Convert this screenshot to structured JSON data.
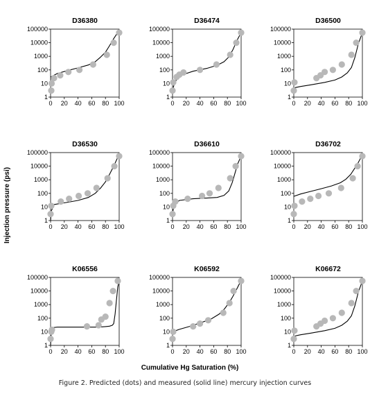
{
  "ylabel": "Injection pressure (psi)",
  "xlabel": "Cumulative Hg Saturation (%)",
  "caption": "Figure 2. Predicted (dots) and measured (solid line) mercury injection curves",
  "colors": {
    "dots": "#b8b8b8",
    "line": "#000000",
    "frame": "#000000"
  },
  "chart_data": [
    {
      "type": "scatter",
      "title": "D36380",
      "xlim": [
        0,
        100
      ],
      "ylim": [
        1,
        100000
      ],
      "yscale": "log",
      "x_ticks": [
        "0",
        "20",
        "40",
        "60",
        "80",
        "100"
      ],
      "y_ticks": [
        "1",
        "10",
        "100",
        "1000",
        "10000",
        "100000"
      ],
      "series": [
        {
          "kind": "dots",
          "x": [
            1,
            1.5,
            5,
            14,
            26,
            42,
            62,
            82,
            92,
            100
          ],
          "y": [
            3,
            10,
            25,
            40,
            70,
            100,
            250,
            1300,
            10000,
            55000
          ]
        },
        {
          "kind": "line",
          "x": [
            0,
            10,
            25,
            40,
            55,
            65,
            72,
            80,
            86,
            92,
            96,
            100
          ],
          "y": [
            30,
            55,
            90,
            140,
            230,
            400,
            800,
            2000,
            6000,
            20000,
            40000,
            55000
          ]
        }
      ]
    },
    {
      "type": "scatter",
      "title": "D36474",
      "xlim": [
        0,
        100
      ],
      "ylim": [
        1,
        100000
      ],
      "yscale": "log",
      "x_ticks": [
        "0",
        "20",
        "40",
        "60",
        "80",
        "100"
      ],
      "y_ticks": [
        "1",
        "10",
        "100",
        "1000",
        "10000",
        "100000"
      ],
      "series": [
        {
          "kind": "dots",
          "x": [
            0,
            1,
            6,
            10,
            16,
            40,
            64,
            84,
            93,
            100
          ],
          "y": [
            3,
            12,
            30,
            45,
            65,
            100,
            250,
            1300,
            10000,
            55000
          ]
        },
        {
          "kind": "line",
          "x": [
            0,
            3,
            8,
            15,
            30,
            50,
            65,
            75,
            82,
            88,
            94,
            100
          ],
          "y": [
            3,
            12,
            25,
            45,
            80,
            130,
            220,
            400,
            900,
            3000,
            15000,
            55000
          ]
        }
      ]
    },
    {
      "type": "scatter",
      "title": "D36500",
      "xlim": [
        0,
        100
      ],
      "ylim": [
        1,
        100000
      ],
      "yscale": "log",
      "x_ticks": [
        "0",
        "20",
        "40",
        "60",
        "80",
        "100"
      ],
      "y_ticks": [
        "1",
        "10",
        "100",
        "1000",
        "10000",
        "100000"
      ],
      "series": [
        {
          "kind": "dots",
          "x": [
            0,
            1,
            33,
            39,
            45,
            57,
            70,
            84,
            91,
            100
          ],
          "y": [
            3,
            12,
            25,
            40,
            70,
            100,
            250,
            1300,
            10000,
            55000
          ]
        },
        {
          "kind": "line",
          "x": [
            0,
            2,
            10,
            25,
            45,
            60,
            70,
            78,
            84,
            89,
            94,
            100
          ],
          "y": [
            4,
            5,
            6,
            8,
            12,
            18,
            30,
            60,
            150,
            800,
            8000,
            55000
          ]
        }
      ]
    },
    {
      "type": "scatter",
      "title": "D36530",
      "xlim": [
        0,
        100
      ],
      "ylim": [
        1,
        100000
      ],
      "yscale": "log",
      "x_ticks": [
        "0",
        "20",
        "40",
        "60",
        "80",
        "100"
      ],
      "y_ticks": [
        "1",
        "10",
        "100",
        "1000",
        "10000",
        "100000"
      ],
      "series": [
        {
          "kind": "dots",
          "x": [
            0,
            1,
            15,
            27,
            41,
            54,
            67,
            83,
            93,
            100
          ],
          "y": [
            3,
            12,
            25,
            40,
            65,
            100,
            250,
            1300,
            10000,
            55000
          ]
        },
        {
          "kind": "line",
          "x": [
            0,
            1,
            5,
            20,
            40,
            55,
            65,
            73,
            80,
            86,
            92,
            97,
            100
          ],
          "y": [
            1,
            5,
            15,
            20,
            30,
            50,
            100,
            250,
            700,
            2500,
            10000,
            35000,
            55000
          ]
        }
      ]
    },
    {
      "type": "scatter",
      "title": "D36610",
      "xlim": [
        0,
        100
      ],
      "ylim": [
        1,
        100000
      ],
      "yscale": "log",
      "x_ticks": [
        "0",
        "20",
        "40",
        "60",
        "80",
        "100"
      ],
      "y_ticks": [
        "1",
        "10",
        "100",
        "1000",
        "10000",
        "100000"
      ],
      "series": [
        {
          "kind": "dots",
          "x": [
            0,
            1,
            4,
            22,
            43,
            54,
            67,
            84,
            92,
            100
          ],
          "y": [
            3,
            12,
            25,
            40,
            65,
            100,
            250,
            1300,
            10000,
            55000
          ]
        },
        {
          "kind": "line",
          "x": [
            0,
            2,
            10,
            30,
            50,
            65,
            75,
            82,
            87,
            91,
            95,
            100
          ],
          "y": [
            3,
            15,
            30,
            40,
            45,
            50,
            70,
            150,
            600,
            3000,
            15000,
            55000
          ]
        }
      ]
    },
    {
      "type": "scatter",
      "title": "D36702",
      "xlim": [
        0,
        100
      ],
      "ylim": [
        1,
        100000
      ],
      "yscale": "log",
      "x_ticks": [
        "0",
        "20",
        "40",
        "60",
        "80",
        "100"
      ],
      "y_ticks": [
        "1",
        "10",
        "100",
        "1000",
        "10000",
        "100000"
      ],
      "series": [
        {
          "kind": "dots",
          "x": [
            0,
            1,
            12,
            24,
            36,
            51,
            69,
            86,
            93,
            100
          ],
          "y": [
            3,
            12,
            25,
            40,
            65,
            100,
            250,
            1300,
            10000,
            55000
          ]
        },
        {
          "kind": "line",
          "x": [
            0,
            10,
            25,
            40,
            55,
            68,
            76,
            83,
            88,
            93,
            97,
            100
          ],
          "y": [
            60,
            90,
            140,
            220,
            350,
            600,
            1100,
            2500,
            6000,
            15000,
            35000,
            55000
          ]
        }
      ]
    },
    {
      "type": "scatter",
      "title": "K06556",
      "xlim": [
        0,
        100
      ],
      "ylim": [
        1,
        100000
      ],
      "yscale": "log",
      "x_ticks": [
        "0",
        "20",
        "40",
        "60",
        "80",
        "100"
      ],
      "y_ticks": [
        "1",
        "10",
        "100",
        "1000",
        "10000",
        "100000"
      ],
      "series": [
        {
          "kind": "dots",
          "x": [
            0,
            1,
            2,
            53,
            70,
            74,
            80,
            86,
            91,
            98
          ],
          "y": [
            3,
            10,
            14,
            25,
            30,
            80,
            130,
            1300,
            10000,
            55000
          ]
        },
        {
          "kind": "line",
          "x": [
            0,
            1,
            2,
            10,
            30,
            50,
            70,
            80,
            86,
            90,
            92,
            94,
            96,
            98,
            100
          ],
          "y": [
            1,
            10,
            20,
            22,
            22,
            22,
            22,
            24,
            26,
            30,
            40,
            200,
            2000,
            20000,
            55000
          ]
        }
      ]
    },
    {
      "type": "scatter",
      "title": "K06592",
      "xlim": [
        0,
        100
      ],
      "ylim": [
        1,
        100000
      ],
      "yscale": "log",
      "x_ticks": [
        "0",
        "20",
        "40",
        "60",
        "80",
        "100"
      ],
      "y_ticks": [
        "1",
        "10",
        "100",
        "1000",
        "10000",
        "100000"
      ],
      "series": [
        {
          "kind": "dots",
          "x": [
            0,
            1,
            30,
            40,
            52,
            74,
            83,
            89,
            100
          ],
          "y": [
            3,
            10,
            25,
            40,
            70,
            250,
            1300,
            10000,
            55000
          ]
        },
        {
          "kind": "line",
          "x": [
            0,
            10,
            25,
            40,
            55,
            68,
            76,
            83,
            88,
            93,
            97,
            100
          ],
          "y": [
            10,
            15,
            25,
            45,
            80,
            200,
            500,
            1500,
            4000,
            12000,
            30000,
            55000
          ]
        }
      ]
    },
    {
      "type": "scatter",
      "title": "K06672",
      "xlim": [
        0,
        100
      ],
      "ylim": [
        1,
        100000
      ],
      "yscale": "log",
      "x_ticks": [
        "0",
        "20",
        "40",
        "60",
        "80",
        "100"
      ],
      "y_ticks": [
        "1",
        "10",
        "100",
        "1000",
        "10000",
        "100000"
      ],
      "series": [
        {
          "kind": "dots",
          "x": [
            0,
            1,
            33,
            39,
            45,
            57,
            70,
            84,
            91,
            100
          ],
          "y": [
            3,
            12,
            25,
            40,
            65,
            100,
            250,
            1300,
            10000,
            55000
          ]
        },
        {
          "kind": "line",
          "x": [
            0,
            2,
            10,
            25,
            45,
            60,
            70,
            78,
            84,
            89,
            94,
            100
          ],
          "y": [
            3,
            5,
            6,
            8,
            12,
            18,
            30,
            60,
            150,
            800,
            8000,
            55000
          ]
        }
      ]
    }
  ]
}
